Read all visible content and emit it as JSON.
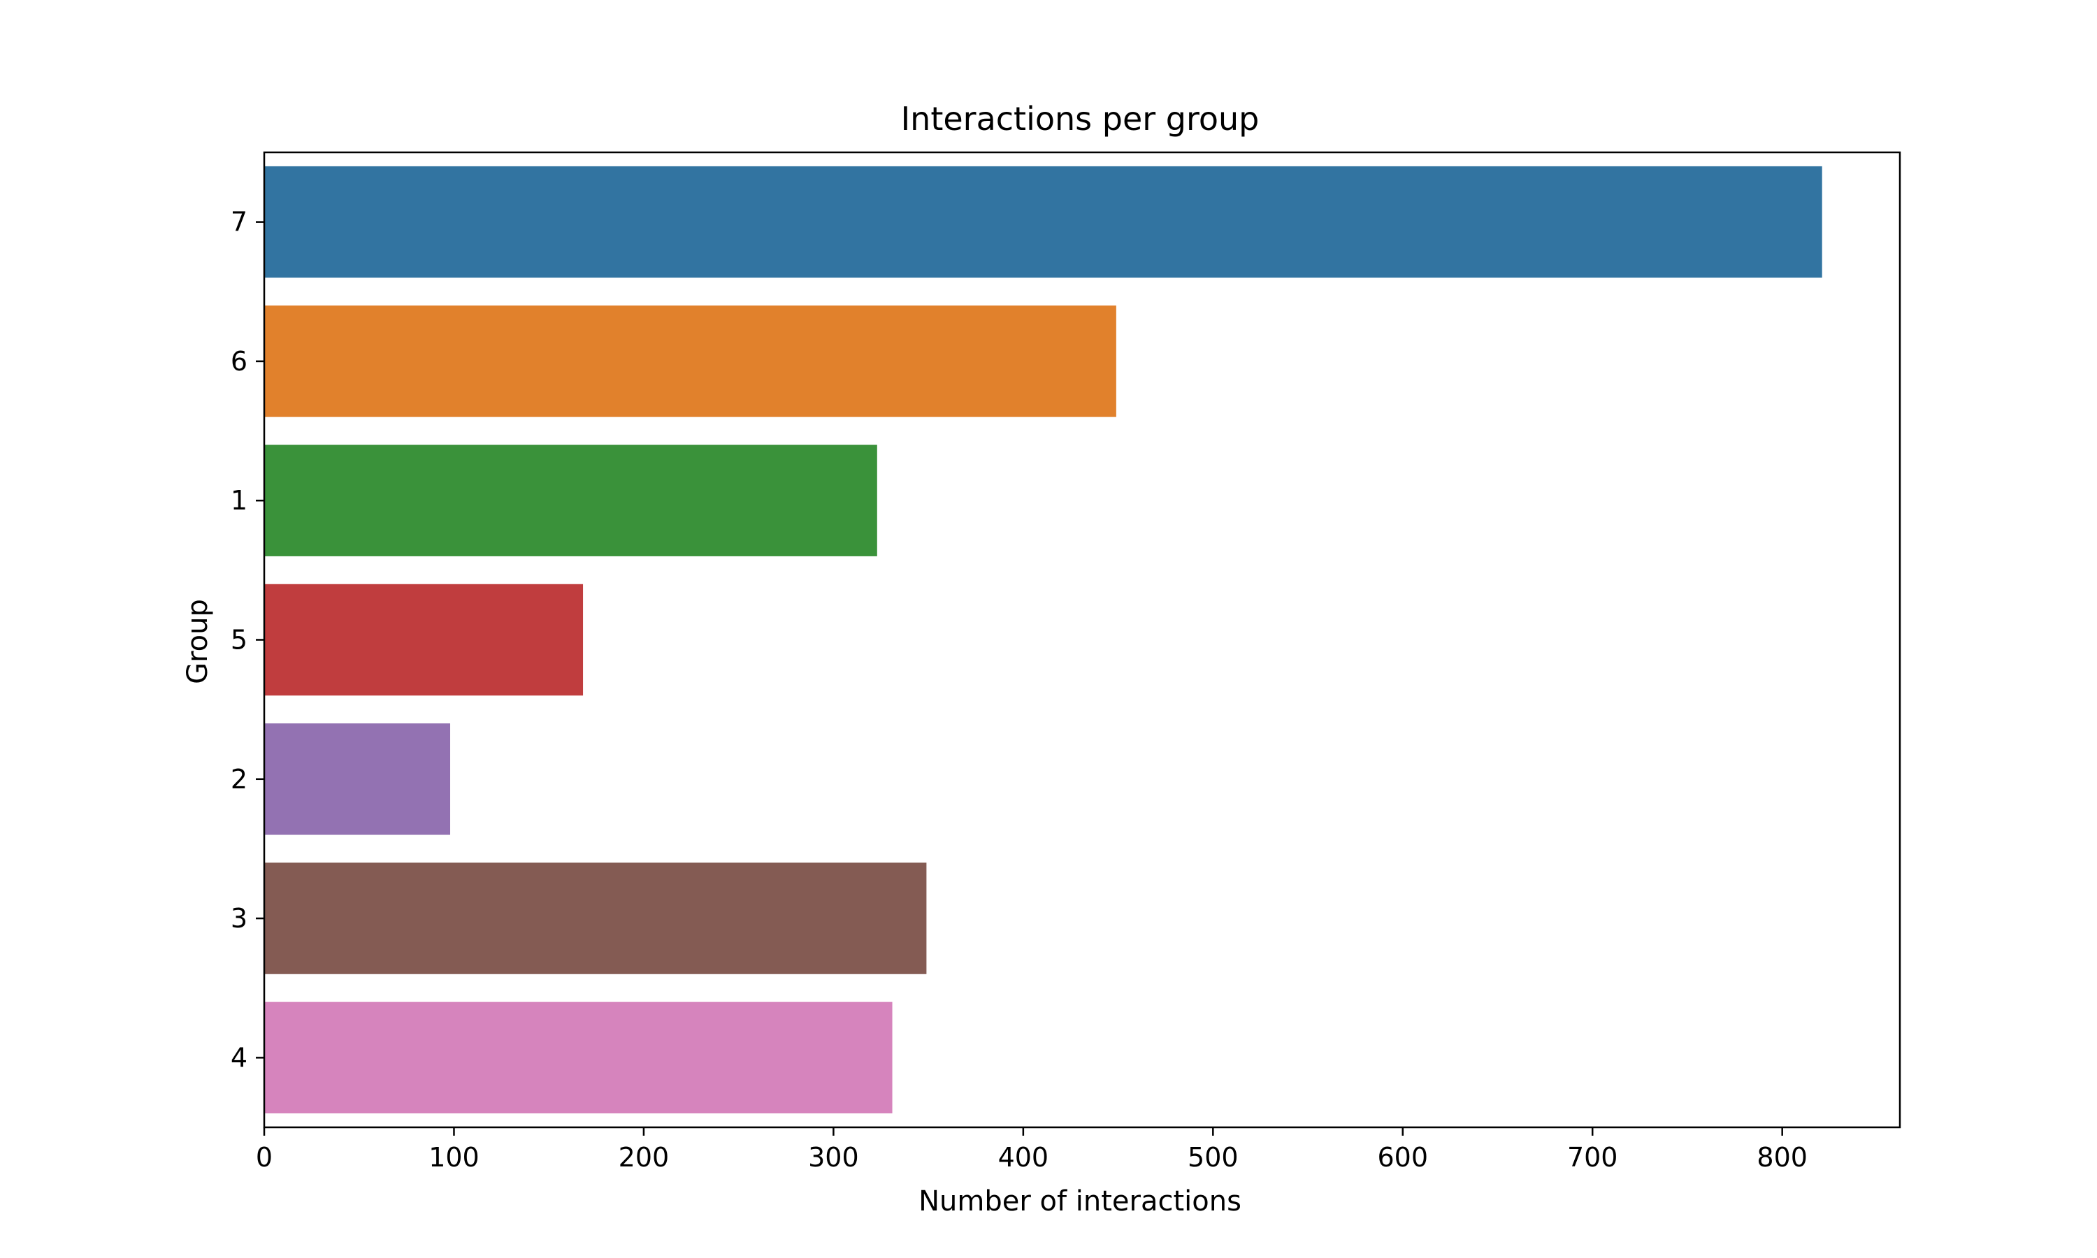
{
  "chart_data": {
    "type": "bar",
    "orientation": "horizontal",
    "title": "Interactions per group",
    "xlabel": "Number of interactions",
    "ylabel": "Group",
    "categories": [
      "7",
      "6",
      "1",
      "5",
      "2",
      "3",
      "4"
    ],
    "values": [
      821,
      449,
      323,
      168,
      98,
      349,
      331
    ],
    "colors": [
      "#3274a1",
      "#e1812c",
      "#3a923a",
      "#c03d3e",
      "#9372b2",
      "#845b53",
      "#d684bd"
    ],
    "xlim": [
      0,
      862
    ],
    "xticks": [
      0,
      100,
      200,
      300,
      400,
      500,
      600,
      700,
      800
    ],
    "grid": false,
    "legend": "none"
  }
}
